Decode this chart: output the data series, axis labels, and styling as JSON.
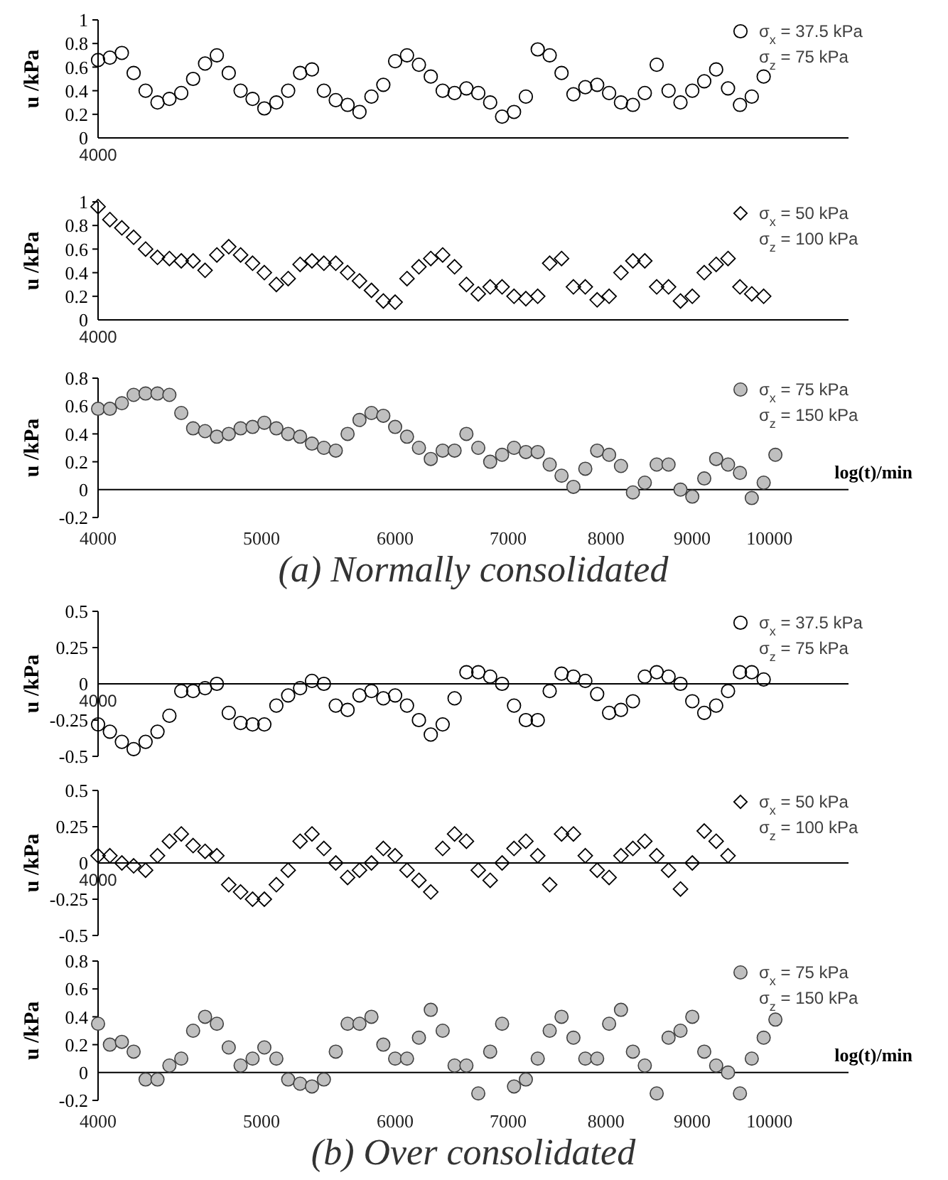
{
  "chart_data": [
    {
      "type": "scatter",
      "ylabel": "u /kPa",
      "log": "x",
      "legend": "top right",
      "marker": "circle",
      "xlim": [
        4000,
        11140
      ],
      "tick_labels": "y",
      "annotations": [
        "4000"
      ],
      "ylim": [
        0,
        1
      ],
      "yticks": [
        0,
        0.2,
        0.4,
        0.6,
        0.8,
        1
      ],
      "x": [
        4000,
        4065,
        4132,
        4199,
        4268,
        4338,
        4409,
        4481,
        4554,
        4629,
        4704,
        4781,
        4859,
        4939,
        5019,
        5102,
        5185,
        5270,
        5356,
        5444,
        5533,
        5623,
        5715,
        5809,
        5904,
        6000,
        6098,
        6198,
        6299,
        6402,
        6507,
        6613,
        6721,
        6831,
        6943,
        7057,
        7172,
        7289,
        7409,
        7530,
        7653,
        7778,
        7905,
        8035,
        8166,
        8300,
        8436,
        8574,
        8714,
        8857,
        9001,
        9149,
        9299,
        9451,
        9606,
        9762,
        9922
      ],
      "series": [
        {
          "name": "σ$_{x}$ = 37.5 kPa\nσ$_{z}$ = 75 kPa",
          "color": "#000000",
          "values": [
            0.66,
            0.68,
            0.72,
            0.55,
            0.4,
            0.3,
            0.33,
            0.38,
            0.5,
            0.63,
            0.7,
            0.55,
            0.4,
            0.33,
            0.25,
            0.3,
            0.4,
            0.55,
            0.58,
            0.4,
            0.32,
            0.28,
            0.22,
            0.35,
            0.45,
            0.65,
            0.7,
            0.62,
            0.52,
            0.4,
            0.38,
            0.42,
            0.38,
            0.3,
            0.18,
            0.22,
            0.35,
            0.75,
            0.7,
            0.55,
            0.37,
            0.43,
            0.45,
            0.38,
            0.3,
            0.28,
            0.38,
            0.62,
            0.4,
            0.3,
            0.4,
            0.48,
            0.58,
            0.42,
            0.28,
            0.35,
            0.52
          ]
        }
      ]
    },
    {
      "type": "scatter",
      "ylabel": "u /kPa",
      "log": "x",
      "legend": "top right",
      "marker": "diamond",
      "xlim": [
        4000,
        11140
      ],
      "tick_labels": "y",
      "annotations": [
        "4000"
      ],
      "ylim": [
        0,
        1
      ],
      "yticks": [
        0,
        0.2,
        0.4,
        0.6,
        0.8,
        1
      ],
      "x": [
        4000,
        4065,
        4132,
        4199,
        4268,
        4338,
        4409,
        4481,
        4554,
        4629,
        4704,
        4781,
        4859,
        4939,
        5019,
        5102,
        5185,
        5270,
        5356,
        5444,
        5533,
        5623,
        5715,
        5809,
        5904,
        6000,
        6098,
        6198,
        6299,
        6402,
        6507,
        6613,
        6721,
        6831,
        6943,
        7057,
        7172,
        7289,
        7409,
        7530,
        7653,
        7778,
        7905,
        8035,
        8166,
        8300,
        8436,
        8574,
        8714,
        8857,
        9001,
        9149,
        9299,
        9451,
        9606,
        9762,
        9922
      ],
      "series": [
        {
          "name": "σ$_{x}$ = 50 kPa\nσ$_{z}$ = 100 kPa",
          "color": "#000000",
          "values": [
            0.96,
            0.85,
            0.78,
            0.7,
            0.6,
            0.53,
            0.52,
            0.5,
            0.5,
            0.42,
            0.55,
            0.62,
            0.55,
            0.48,
            0.4,
            0.3,
            0.35,
            0.47,
            0.5,
            0.48,
            0.48,
            0.4,
            0.33,
            0.25,
            0.16,
            0.15,
            0.35,
            0.45,
            0.52,
            0.55,
            0.45,
            0.3,
            0.22,
            0.28,
            0.28,
            0.2,
            0.18,
            0.2,
            0.48,
            0.52,
            0.28,
            0.28,
            0.17,
            0.2,
            0.4,
            0.5,
            0.5,
            0.28,
            0.28,
            0.16,
            0.2,
            0.4,
            0.47,
            0.52,
            0.28,
            0.22,
            0.2
          ]
        }
      ]
    },
    {
      "type": "scatter",
      "ylabel": "u /kPa",
      "xlabel": "log(t)/min",
      "annotations": [
        "(a) Normally consolidated"
      ],
      "log": "x",
      "legend": "top right",
      "marker": "circle",
      "xlim": [
        4000,
        11140
      ],
      "xticks": [
        4000,
        5000,
        6000,
        7000,
        8000,
        9000,
        10000
      ],
      "ylim": [
        -0.2,
        0.8
      ],
      "yticks": [
        -0.2,
        0,
        0.2,
        0.4,
        0.6,
        0.8
      ],
      "x": [
        4000,
        4065,
        4132,
        4199,
        4268,
        4338,
        4409,
        4481,
        4554,
        4629,
        4704,
        4781,
        4859,
        4939,
        5019,
        5102,
        5185,
        5270,
        5356,
        5444,
        5533,
        5623,
        5715,
        5809,
        5904,
        6000,
        6098,
        6198,
        6299,
        6402,
        6507,
        6613,
        6721,
        6831,
        6943,
        7057,
        7172,
        7289,
        7409,
        7530,
        7653,
        7778,
        7905,
        8035,
        8166,
        8300,
        8436,
        8574,
        8714,
        8857,
        9001,
        9149,
        9299,
        9451,
        9606,
        9762,
        9922,
        10082
      ],
      "series": [
        {
          "name": "σ$_{x}$ = 75 kPa\nσ$_{z}$ = 150 kPa",
          "color": "#bfbfbf",
          "values": [
            0.58,
            0.58,
            0.62,
            0.68,
            0.69,
            0.69,
            0.68,
            0.55,
            0.44,
            0.42,
            0.38,
            0.4,
            0.44,
            0.45,
            0.48,
            0.44,
            0.4,
            0.38,
            0.33,
            0.3,
            0.28,
            0.4,
            0.5,
            0.55,
            0.53,
            0.45,
            0.38,
            0.3,
            0.22,
            0.28,
            0.28,
            0.4,
            0.3,
            0.2,
            0.25,
            0.3,
            0.27,
            0.27,
            0.18,
            0.1,
            0.02,
            0.15,
            0.28,
            0.25,
            0.17,
            -0.02,
            0.05,
            0.18,
            0.18,
            0,
            -0.05,
            0.08,
            0.22,
            0.18,
            0.12,
            -0.06,
            0.05,
            0.25
          ]
        }
      ]
    },
    {
      "type": "scatter",
      "ylabel": "u /kPa",
      "log": "x",
      "legend": "top right",
      "marker": "circle",
      "xlim": [
        4000,
        11140
      ],
      "tick_labels": "y",
      "annotations": [
        "4000"
      ],
      "ylim": [
        -0.5,
        0.5
      ],
      "yticks": [
        -0.5,
        -0.25,
        0,
        0.25,
        0.5
      ],
      "x": [
        4000,
        4065,
        4132,
        4199,
        4268,
        4338,
        4409,
        4481,
        4554,
        4629,
        4704,
        4781,
        4859,
        4939,
        5019,
        5102,
        5185,
        5270,
        5356,
        5444,
        5533,
        5623,
        5715,
        5809,
        5904,
        6000,
        6098,
        6198,
        6299,
        6402,
        6507,
        6613,
        6721,
        6831,
        6943,
        7057,
        7172,
        7289,
        7409,
        7530,
        7653,
        7778,
        7905,
        8035,
        8166,
        8300,
        8436,
        8574,
        8714,
        8857,
        9001,
        9149,
        9299,
        9451,
        9606,
        9762,
        9922
      ],
      "series": [
        {
          "name": "σ$_{x}$ = 37.5 kPa\nσ$_{z}$ = 75 kPa",
          "color": "#000000",
          "values": [
            -0.28,
            -0.33,
            -0.4,
            -0.45,
            -0.4,
            -0.33,
            -0.22,
            -0.05,
            -0.05,
            -0.03,
            0,
            -0.2,
            -0.27,
            -0.28,
            -0.28,
            -0.15,
            -0.08,
            -0.03,
            0.02,
            0,
            -0.15,
            -0.18,
            -0.08,
            -0.05,
            -0.1,
            -0.08,
            -0.15,
            -0.25,
            -0.35,
            -0.28,
            -0.1,
            0.08,
            0.08,
            0.05,
            0,
            -0.15,
            -0.25,
            -0.25,
            -0.05,
            0.07,
            0.05,
            0.02,
            -0.07,
            -0.2,
            -0.18,
            -0.12,
            0.05,
            0.08,
            0.05,
            0,
            -0.12,
            -0.2,
            -0.15,
            -0.05,
            0.08,
            0.08,
            0.03
          ]
        }
      ]
    },
    {
      "type": "scatter",
      "ylabel": "u /kPa",
      "log": "x",
      "legend": "top right",
      "marker": "diamond",
      "xlim": [
        4000,
        11140
      ],
      "tick_labels": "y",
      "annotations": [
        "4000"
      ],
      "ylim": [
        -0.5,
        0.5
      ],
      "yticks": [
        -0.5,
        -0.25,
        0,
        0.25,
        0.5
      ],
      "x": [
        4000,
        4065,
        4132,
        4199,
        4268,
        4338,
        4409,
        4481,
        4554,
        4629,
        4704,
        4781,
        4859,
        4939,
        5019,
        5102,
        5185,
        5270,
        5356,
        5444,
        5533,
        5623,
        5715,
        5809,
        5904,
        6000,
        6098,
        6198,
        6299,
        6402,
        6507,
        6613,
        6721,
        6831,
        6943,
        7057,
        7172,
        7289,
        7409,
        7530,
        7653,
        7778,
        7905,
        8035,
        8166,
        8300,
        8436,
        8574,
        8714,
        8857,
        9001,
        9149,
        9299,
        9451
      ],
      "series": [
        {
          "name": "σ$_{x}$ = 50 kPa\nσ$_{z}$ = 100 kPa",
          "color": "#000000",
          "values": [
            0.05,
            0.05,
            0,
            -0.02,
            -0.05,
            0.05,
            0.15,
            0.2,
            0.12,
            0.08,
            0.05,
            -0.15,
            -0.2,
            -0.25,
            -0.25,
            -0.15,
            -0.05,
            0.15,
            0.2,
            0.1,
            0,
            -0.1,
            -0.05,
            0,
            0.1,
            0.05,
            -0.05,
            -0.12,
            -0.2,
            0.1,
            0.2,
            0.15,
            -0.05,
            -0.12,
            0,
            0.1,
            0.15,
            0.05,
            -0.15,
            0.2,
            0.2,
            0.05,
            -0.05,
            -0.1,
            0.05,
            0.1,
            0.15,
            0.05,
            -0.05,
            -0.18,
            0,
            0.22,
            0.15,
            0.05
          ]
        }
      ]
    },
    {
      "type": "scatter",
      "ylabel": "u /kPa",
      "xlabel": "log(t)/min",
      "annotations": [
        "(b) Over consolidated"
      ],
      "log": "x",
      "legend": "top right",
      "marker": "circle",
      "xlim": [
        4000,
        11140
      ],
      "xticks": [
        4000,
        5000,
        6000,
        7000,
        8000,
        9000,
        10000
      ],
      "ylim": [
        -0.2,
        0.8
      ],
      "yticks": [
        -0.2,
        0,
        0.2,
        0.4,
        0.6,
        0.8
      ],
      "x": [
        4000,
        4065,
        4132,
        4199,
        4268,
        4338,
        4409,
        4481,
        4554,
        4629,
        4704,
        4781,
        4859,
        4939,
        5019,
        5102,
        5185,
        5270,
        5356,
        5444,
        5533,
        5623,
        5715,
        5809,
        5904,
        6000,
        6098,
        6198,
        6299,
        6402,
        6507,
        6613,
        6721,
        6831,
        6943,
        7057,
        7172,
        7289,
        7409,
        7530,
        7653,
        7778,
        7905,
        8035,
        8166,
        8300,
        8436,
        8574,
        8714,
        8857,
        9001,
        9149,
        9299,
        9451,
        9606,
        9762,
        9922,
        10082
      ],
      "series": [
        {
          "name": "σ$_{x}$ = 75 kPa\nσ$_{z}$ = 150 kPa",
          "color": "#bfbfbf",
          "values": [
            0.35,
            0.2,
            0.22,
            0.15,
            -0.05,
            -0.05,
            0.05,
            0.1,
            0.3,
            0.4,
            0.35,
            0.18,
            0.05,
            0.1,
            0.18,
            0.1,
            -0.05,
            -0.08,
            -0.1,
            -0.05,
            0.15,
            0.35,
            0.35,
            0.4,
            0.2,
            0.1,
            0.1,
            0.25,
            0.45,
            0.3,
            0.05,
            0.05,
            -0.15,
            0.15,
            0.35,
            -0.1,
            -0.05,
            0.1,
            0.3,
            0.4,
            0.25,
            0.1,
            0.1,
            0.35,
            0.45,
            0.15,
            0.05,
            -0.15,
            0.25,
            0.3,
            0.4,
            0.15,
            0.05,
            0,
            -0.15,
            0.1,
            0.25,
            0.38
          ]
        }
      ]
    }
  ]
}
